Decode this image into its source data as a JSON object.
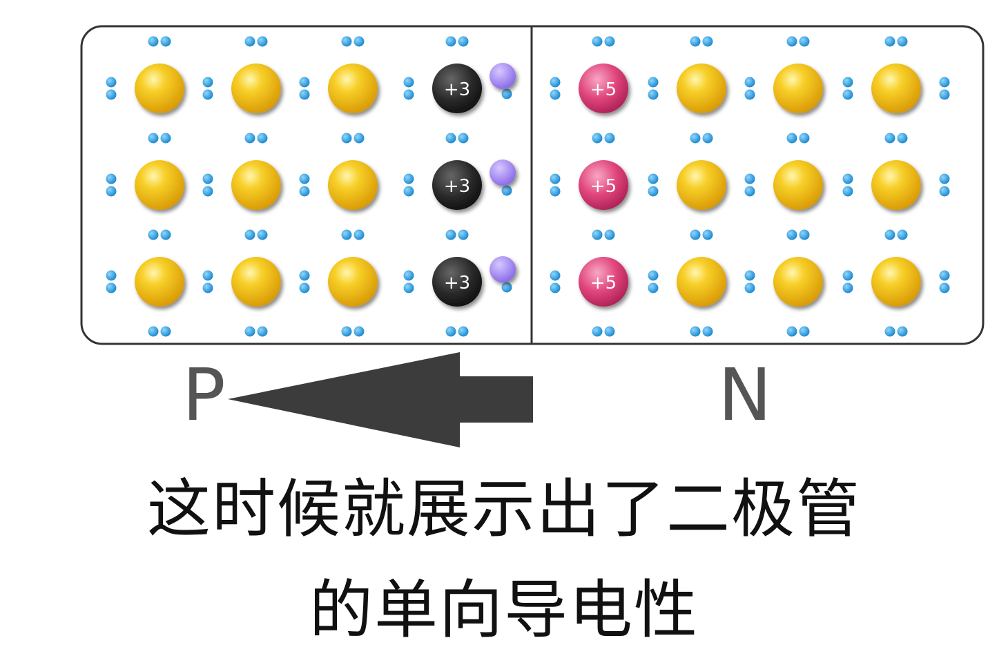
{
  "diagram": {
    "p_region_label": "P",
    "n_region_label": "N",
    "acceptor_ion_charge": "+3",
    "donor_ion_charge": "+5",
    "grid_rows": 3,
    "p_side_silicon_per_row": 3,
    "n_side_silicon_per_row": 3,
    "colors": {
      "silicon_atom": "#f5c518",
      "acceptor_ion": "#2a2a2a",
      "donor_ion": "#e0457b",
      "valence_electron": "#1e9be0",
      "hole": "#9b7cf0",
      "arrow": "#3c3c3c",
      "border": "#333333"
    }
  },
  "caption": {
    "line1": "这时候就展示出了二极管",
    "line2": "的单向导电性"
  }
}
